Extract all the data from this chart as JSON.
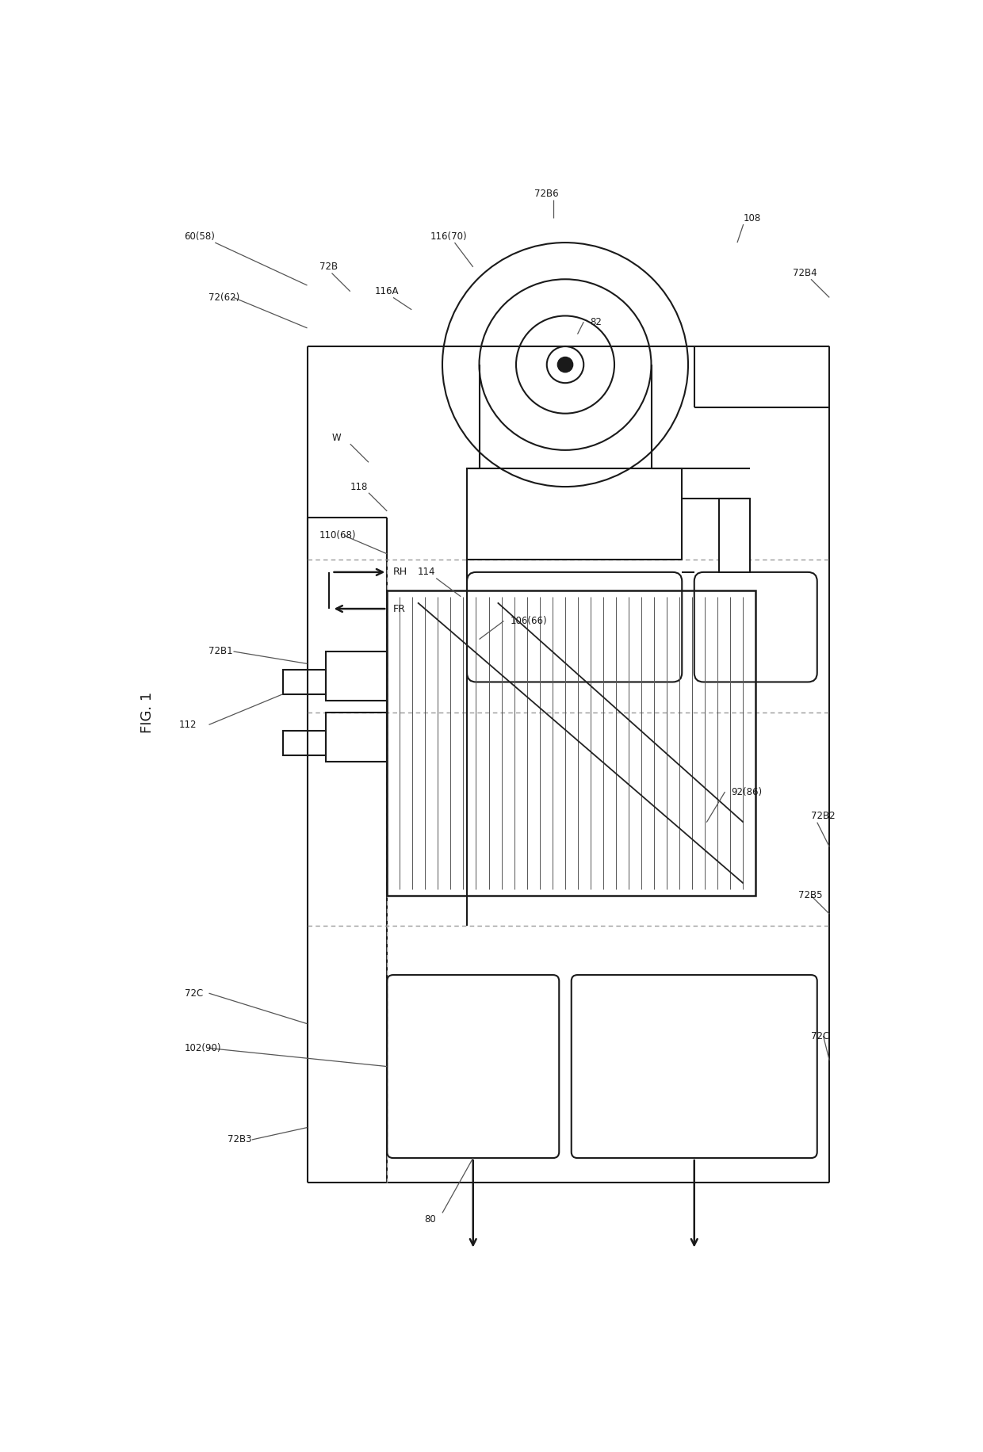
{
  "bg": "#ffffff",
  "lc": "#1a1a1a",
  "fig_w": 12.4,
  "fig_h": 18.32,
  "dpi": 100,
  "labels": {
    "fig1": "FIG. 1",
    "60_58": "60(58)",
    "72_62": "72(62)",
    "72B": "72B",
    "116A": "116A",
    "116_70": "116(70)",
    "72B6": "72B6",
    "82": "82",
    "108": "108",
    "72B4": "72B4",
    "RH": "RH",
    "FR": "FR",
    "W": "W",
    "118": "118",
    "106_66": "106(66)",
    "110_68": "110(68)",
    "114": "114",
    "72B1": "72B1",
    "112": "112",
    "92_86": "92(86)",
    "72B2": "72B2",
    "72B5": "72B5",
    "72C_L": "72C",
    "72C_R": "72C",
    "102_90": "102(90)",
    "72B3": "72B3",
    "80": "80"
  }
}
